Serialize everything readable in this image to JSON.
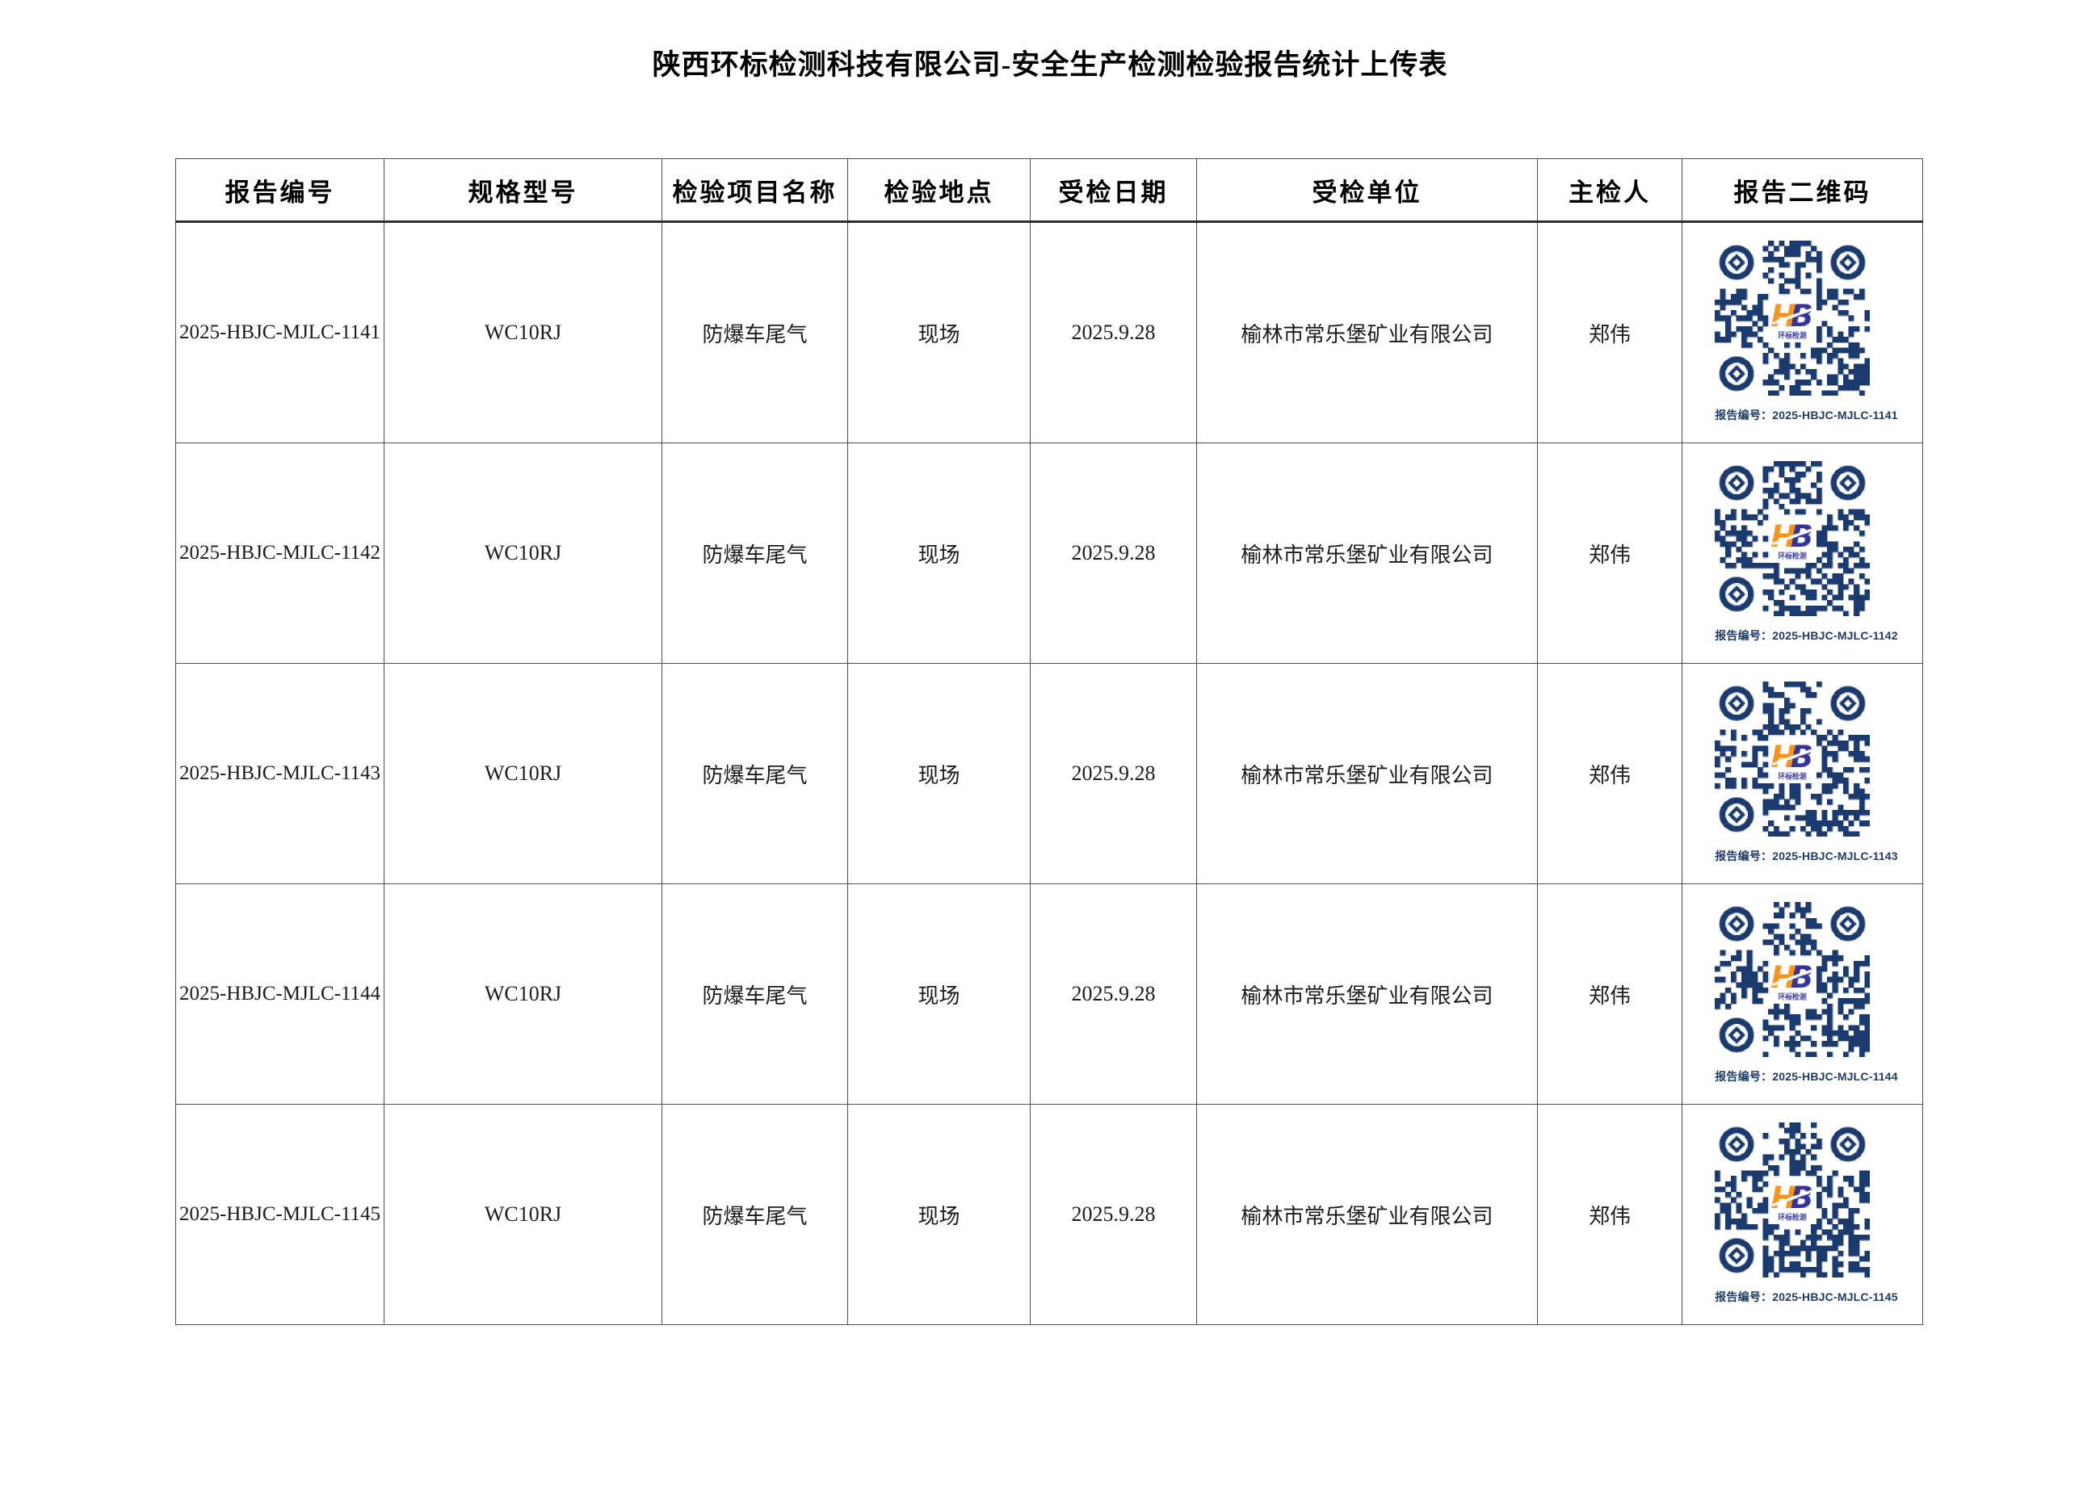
{
  "page": {
    "title": "陕西环标检测科技有限公司-安全生产检测检验报告统计上传表"
  },
  "table": {
    "columns": [
      "报告编号",
      "规格型号",
      "检验项目名称",
      "检验地点",
      "受检日期",
      "受检单位",
      "主检人",
      "报告二维码"
    ],
    "rows": [
      {
        "report_no": "2025-HBJC-MJLC-1141",
        "model": "WC10RJ",
        "item": "防爆车尾气",
        "location": "现场",
        "date": "2025.9.28",
        "unit": "榆林市常乐堡矿业有限公司",
        "inspector": "郑伟",
        "qr_caption": "报告编号：2025-HBJC-MJLC-1141",
        "qr_seed": "1141"
      },
      {
        "report_no": "2025-HBJC-MJLC-1142",
        "model": "WC10RJ",
        "item": "防爆车尾气",
        "location": "现场",
        "date": "2025.9.28",
        "unit": "榆林市常乐堡矿业有限公司",
        "inspector": "郑伟",
        "qr_caption": "报告编号：2025-HBJC-MJLC-1142",
        "qr_seed": "1142"
      },
      {
        "report_no": "2025-HBJC-MJLC-1143",
        "model": "WC10RJ",
        "item": "防爆车尾气",
        "location": "现场",
        "date": "2025.9.28",
        "unit": "榆林市常乐堡矿业有限公司",
        "inspector": "郑伟",
        "qr_caption": "报告编号：2025-HBJC-MJLC-1143",
        "qr_seed": "1143"
      },
      {
        "report_no": "2025-HBJC-MJLC-1144",
        "model": "WC10RJ",
        "item": "防爆车尾气",
        "location": "现场",
        "date": "2025.9.28",
        "unit": "榆林市常乐堡矿业有限公司",
        "inspector": "郑伟",
        "qr_caption": "报告编号：2025-HBJC-MJLC-1144",
        "qr_seed": "1144"
      },
      {
        "report_no": "2025-HBJC-MJLC-1145",
        "model": "WC10RJ",
        "item": "防爆车尾气",
        "location": "现场",
        "date": "2025.9.28",
        "unit": "榆林市常乐堡矿业有限公司",
        "inspector": "郑伟",
        "qr_caption": "报告编号：2025-HBJC-MJLC-1145",
        "qr_seed": "1145"
      }
    ]
  },
  "qr": {
    "module_color": "#1b3a6e",
    "logo_text_h": "H",
    "logo_text_b": "B",
    "logo_subtext": "环标检测",
    "logo_orange": "#f7941d",
    "logo_blue": "#32339b"
  }
}
